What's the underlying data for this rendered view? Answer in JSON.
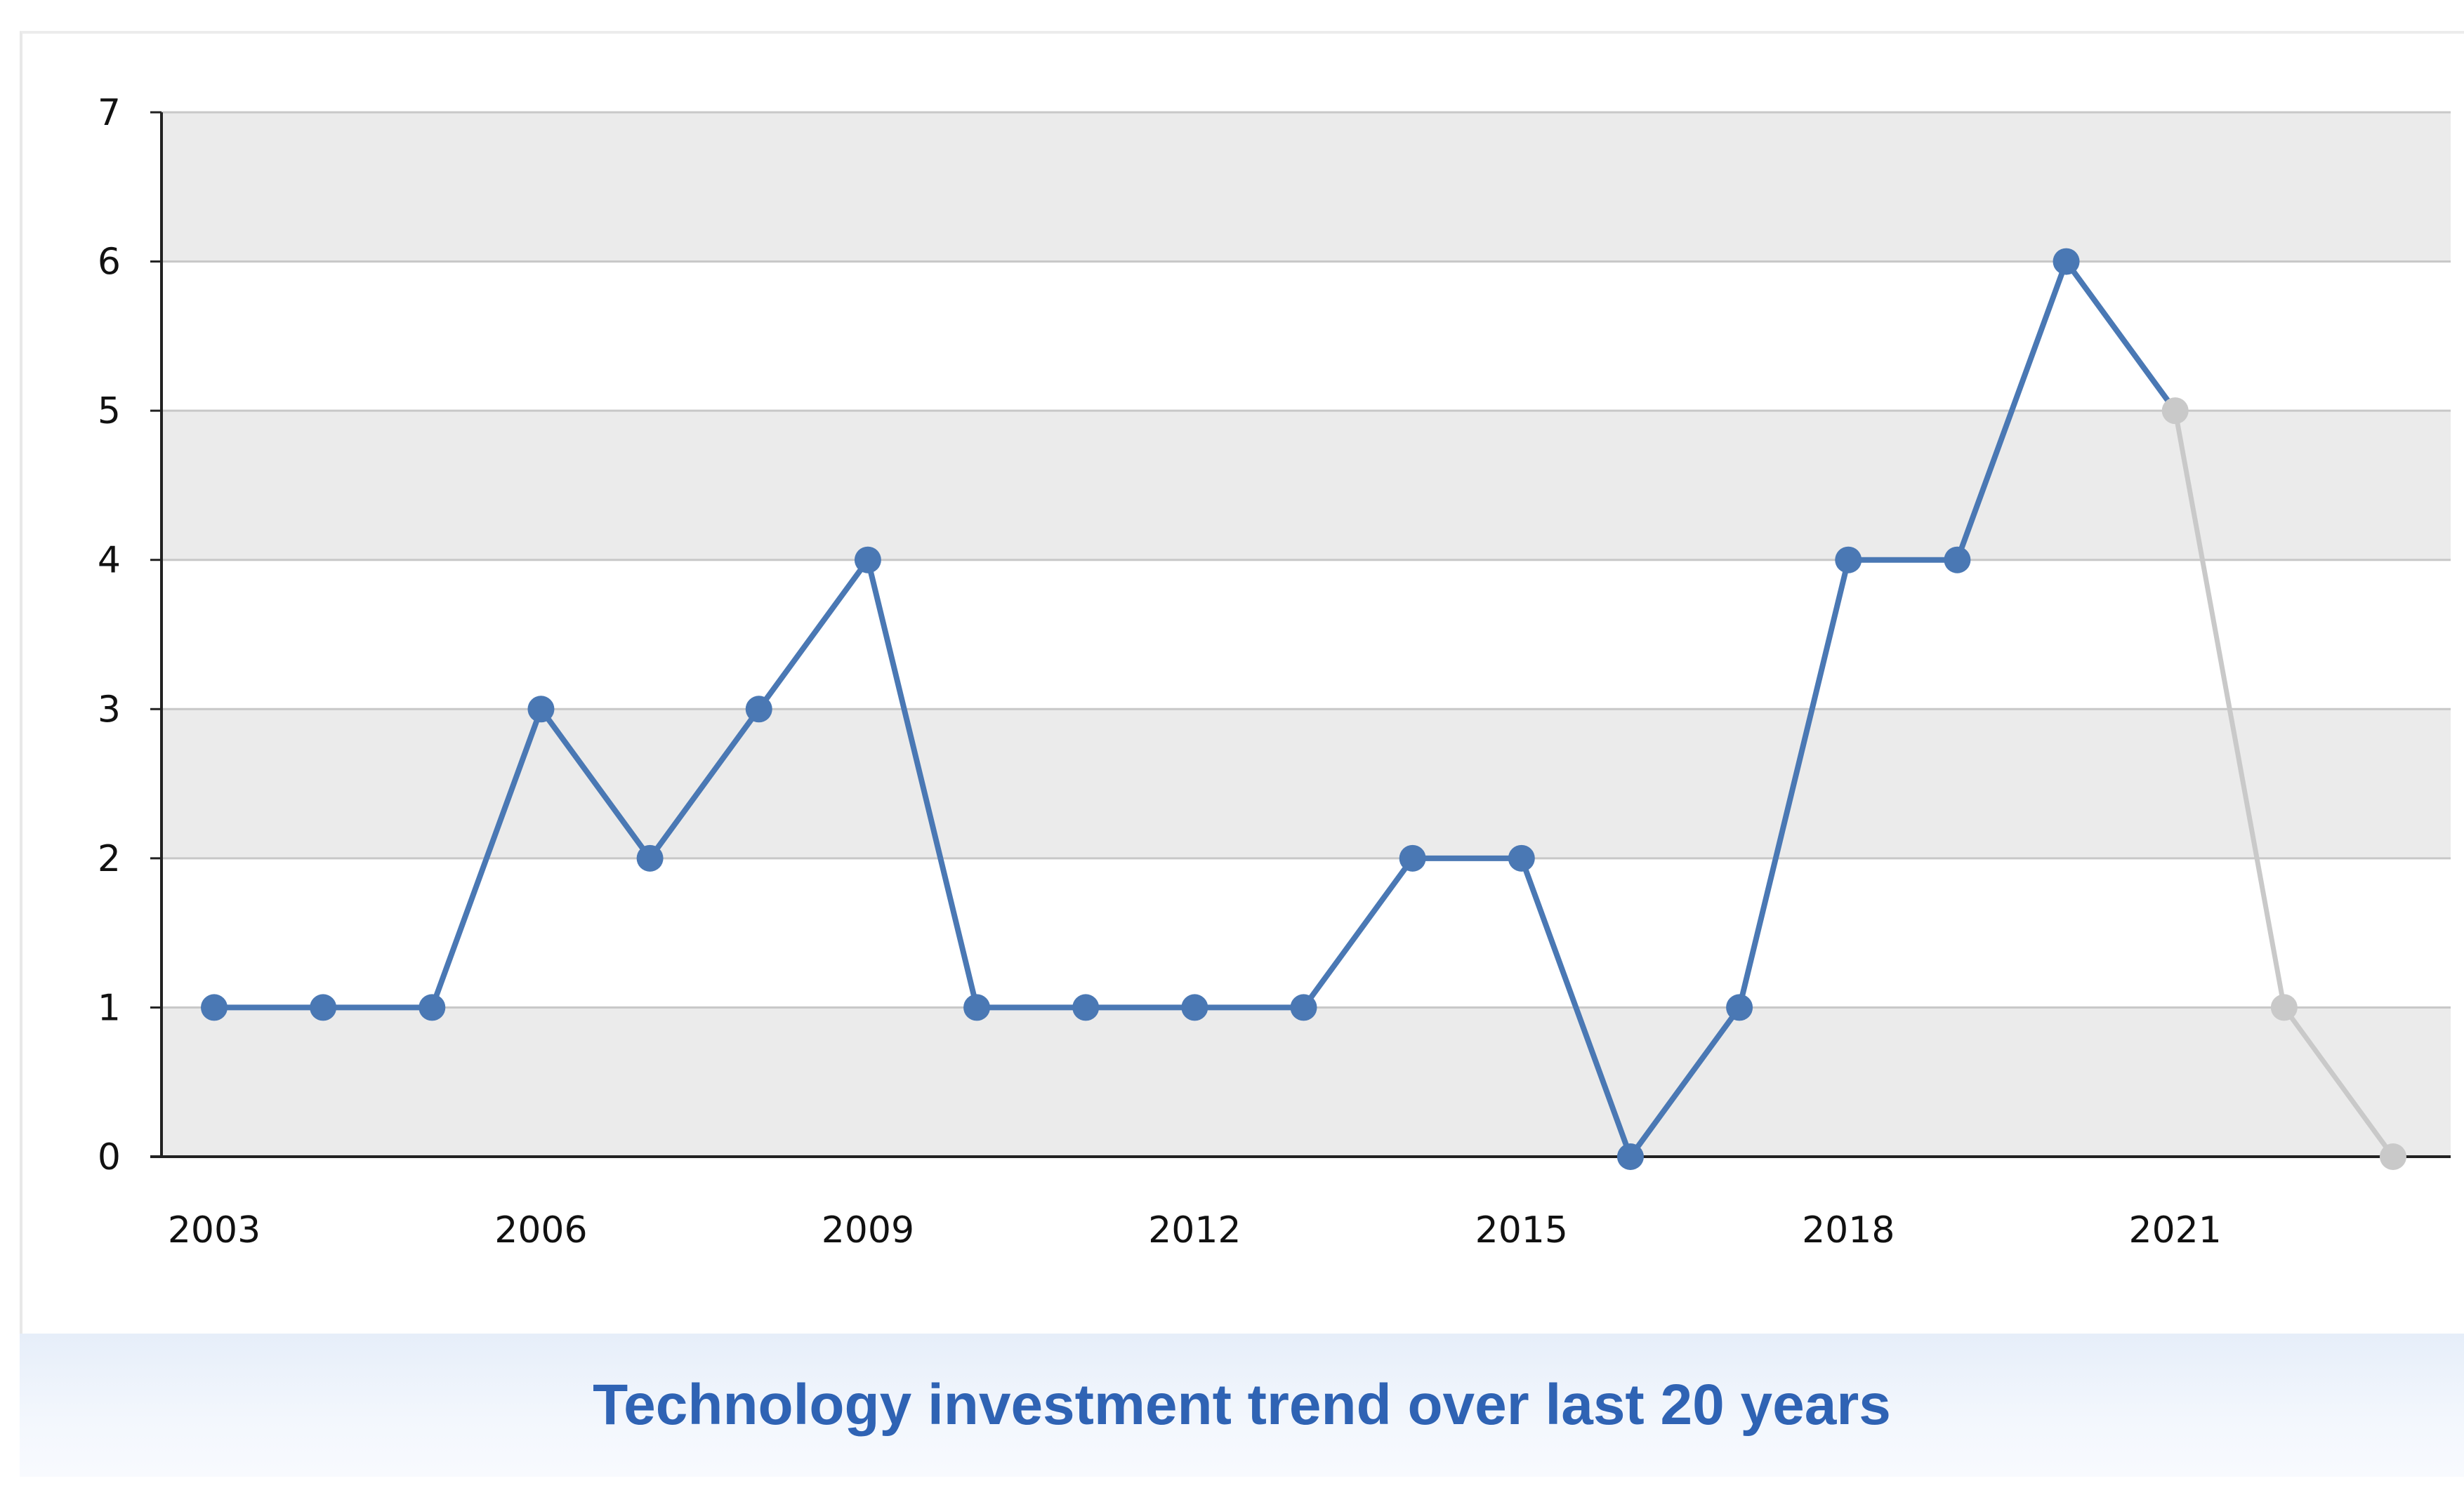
{
  "caption": "Technology investment trend over last 20 years",
  "colors": {
    "line": "#4a78b4",
    "projected": "#c9c9c9",
    "band": "#ebebeb",
    "grid": "#c8c8c8",
    "caption": "#2f63b4"
  },
  "chart_data": {
    "type": "line",
    "title": "",
    "xlabel": "",
    "ylabel": "",
    "xlim": [
      2003,
      2023
    ],
    "ylim": [
      0,
      7
    ],
    "x_ticks": [
      2003,
      2006,
      2009,
      2012,
      2015,
      2018,
      2021
    ],
    "y_ticks": [
      0,
      1,
      2,
      3,
      4,
      5,
      6,
      7
    ],
    "grid": true,
    "legend": "none",
    "series": [
      {
        "x": [
          2003,
          2004,
          2005,
          2006,
          2007,
          2008,
          2009,
          2010,
          2011,
          2012,
          2013,
          2014,
          2015,
          2016,
          2017,
          2018,
          2019,
          2020,
          2021
        ],
        "values": [
          1,
          1,
          1,
          3,
          2,
          3,
          4,
          1,
          1,
          1,
          1,
          2,
          2,
          0,
          1,
          4,
          4,
          6,
          5
        ],
        "style": "solid",
        "color": "#4a78b4"
      },
      {
        "x": [
          2021,
          2022,
          2023
        ],
        "values": [
          5,
          1,
          0
        ],
        "style": "projected",
        "color": "#c9c9c9"
      }
    ]
  }
}
